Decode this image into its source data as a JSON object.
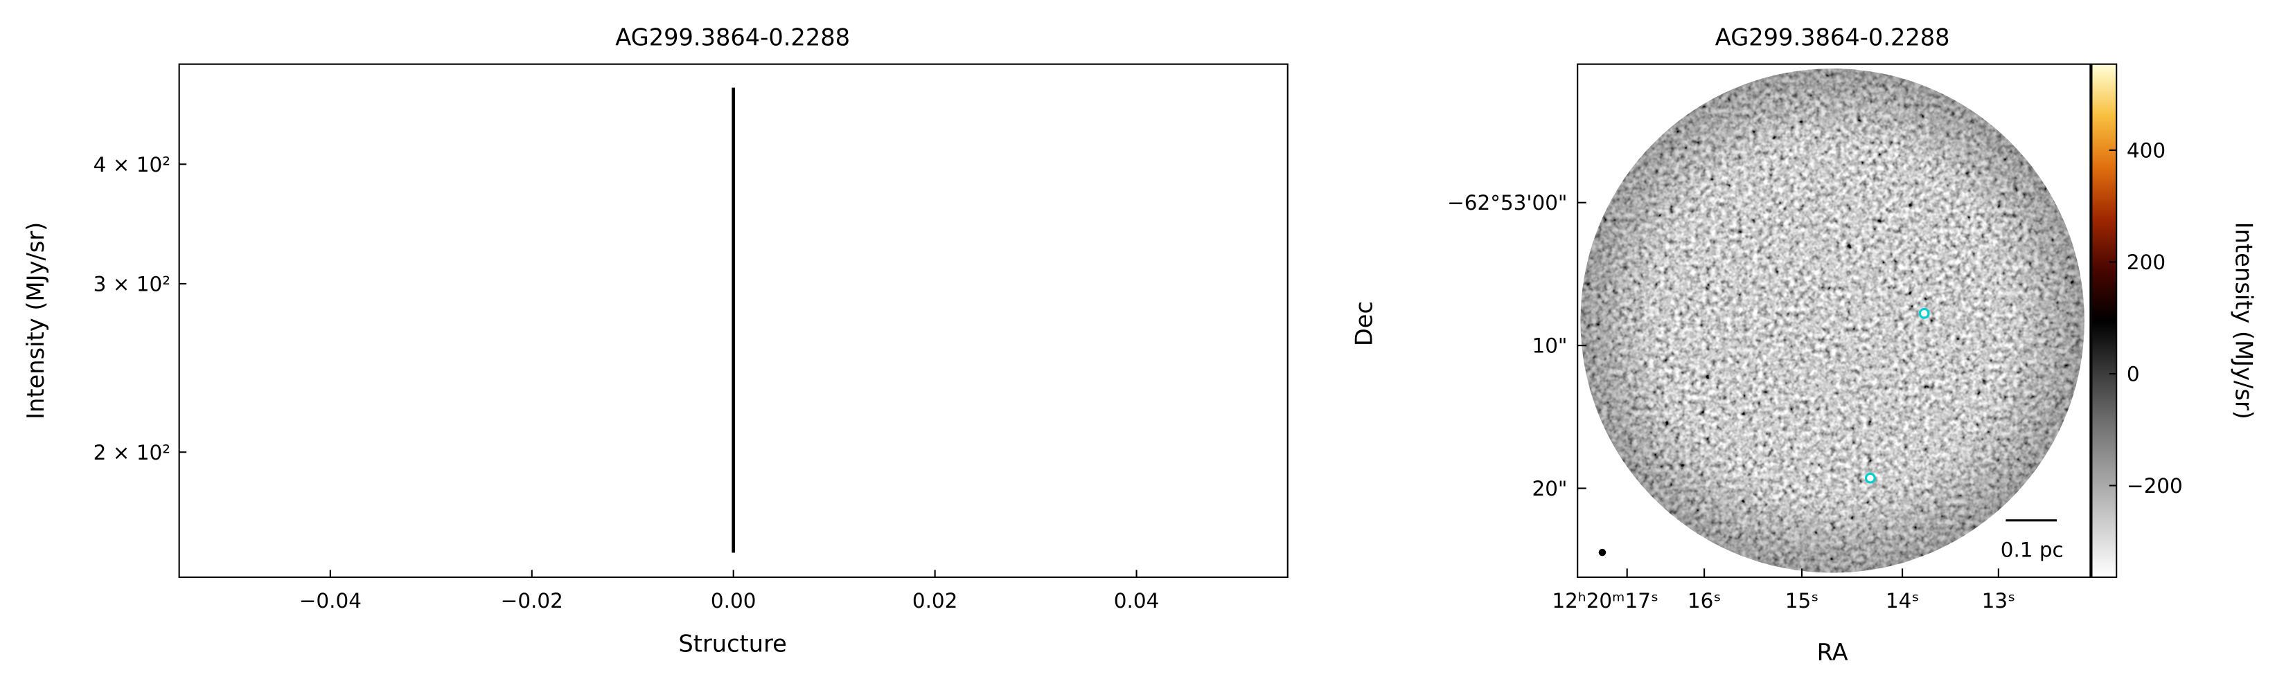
{
  "chart_data": [
    {
      "type": "line",
      "title": "AG299.3864-0.2288",
      "xlabel": "Structure",
      "ylabel": "Intensity (MJy/sr)",
      "x": [
        0,
        0
      ],
      "series": [
        {
          "color": "#000000",
          "values": [
            157,
            481
          ]
        }
      ],
      "xlim": [
        -0.055,
        0.055
      ],
      "xticks": [
        {
          "value": -0.04,
          "label": "−0.04"
        },
        {
          "value": -0.02,
          "label": "−0.02"
        },
        {
          "value": 0,
          "label": "0.00"
        },
        {
          "value": 0.02,
          "label": "0.02"
        },
        {
          "value": 0.04,
          "label": "0.04"
        }
      ],
      "ylim": [
        148,
        509
      ],
      "ylog": true,
      "yticks": [
        {
          "value": 200,
          "label": "2 × 10²"
        },
        {
          "value": 300,
          "label": "3 × 10²"
        },
        {
          "value": 400,
          "label": "4 × 10²"
        }
      ]
    },
    {
      "type": "image",
      "title": "AG299.3864-0.2288",
      "xlabel": "RA",
      "ylabel": "Dec",
      "xticklabels": [
        "12ʰ20ᵐ17ˢ",
        "16ˢ",
        "15ˢ",
        "14ˢ",
        "13ˢ"
      ],
      "yticklabels": [
        "−62°53'00\"",
        "10\"",
        "20\""
      ],
      "scalebar_label": "0.1 pc",
      "colorbar": {
        "label": "Intensity (MJy/sr)",
        "lim": [
          -364,
          554
        ],
        "ticks": [
          {
            "value": -200,
            "label": "−200"
          },
          0,
          200,
          400
        ],
        "colors": [
          "#ffffff",
          "#d0d0d0",
          "#a0a0a0",
          "#707070",
          "#3a3a3a",
          "#000000",
          "#4a0600",
          "#a02800",
          "#e07010",
          "#f8c040",
          "#ffffd8"
        ]
      }
    }
  ]
}
